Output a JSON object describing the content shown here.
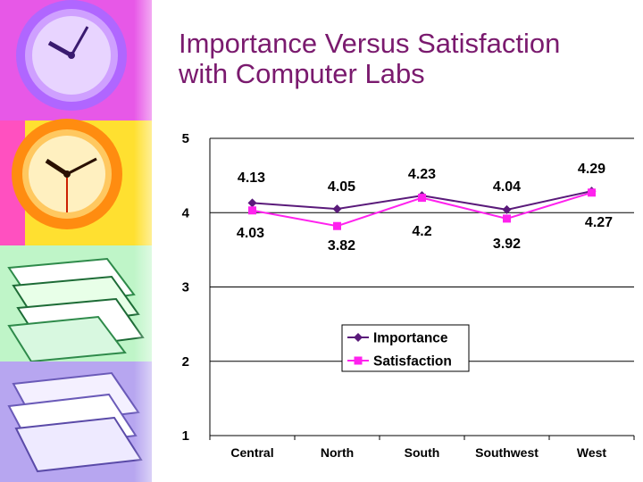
{
  "slide": {
    "title_line1": "Importance Versus Satisfaction",
    "title_line2": "with Computer Labs"
  },
  "colors": {
    "title": "#7a1a6e",
    "importance": "#5a1a7a",
    "satisfaction": "#ff22ee",
    "gridline": "#000000"
  },
  "sidebar": {
    "panels": [
      "clock-purple",
      "clock-orange",
      "books-green",
      "books-lavender"
    ]
  },
  "chart_data": {
    "type": "line",
    "categories": [
      "Central",
      "North",
      "South",
      "Southwest",
      "West"
    ],
    "series": [
      {
        "name": "Importance",
        "values": [
          4.13,
          4.05,
          4.23,
          4.04,
          4.29
        ],
        "marker": "diamond",
        "labels": [
          "4.13",
          "4.05",
          "4.23",
          "4.04",
          "4.29"
        ]
      },
      {
        "name": "Satisfaction",
        "values": [
          4.03,
          3.82,
          4.2,
          3.92,
          4.27
        ],
        "marker": "square",
        "labels": [
          "4.03",
          "3.82",
          "4.2",
          "3.92",
          "4.27"
        ]
      }
    ],
    "yticks": [
      "1",
      "2",
      "3",
      "4",
      "5"
    ],
    "ylim": [
      1,
      5
    ],
    "grid": true,
    "legend": "center"
  }
}
